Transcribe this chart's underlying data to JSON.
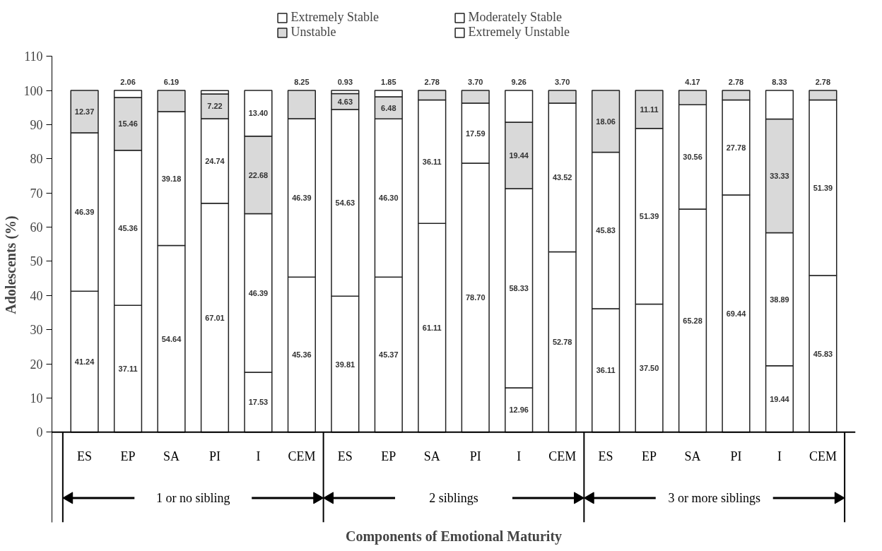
{
  "chart_data": {
    "type": "bar",
    "stacked": true,
    "xlabel": "Components of Emotional Maturity",
    "ylabel": "Adolescents (%)",
    "categories": [
      "ES",
      "EP",
      "SA",
      "PI",
      "I",
      "CEM",
      "ES",
      "EP",
      "SA",
      "PI",
      "I",
      "CEM",
      "ES",
      "EP",
      "SA",
      "PI",
      "I",
      "CEM"
    ],
    "series": [
      {
        "name": "Extremely Stable",
        "color": "#ffffff",
        "values": [
          41.24,
          37.11,
          54.64,
          67.01,
          17.53,
          45.36,
          39.81,
          45.37,
          61.11,
          78.7,
          12.96,
          52.78,
          36.11,
          37.5,
          65.28,
          69.44,
          19.44,
          45.83
        ],
        "value_labels": [
          "41.24",
          "37.11",
          "54.64",
          "67.01",
          "17.53",
          "45.36",
          "39.81",
          "45.37",
          "61.11",
          "78.70",
          "12.96",
          "52.78",
          "36.11",
          "37.50",
          "65.28",
          "69.44",
          "19.44",
          "45.83"
        ]
      },
      {
        "name": "Moderately Stable",
        "color": "#ffffff",
        "values": [
          46.39,
          45.36,
          39.18,
          24.74,
          46.39,
          46.39,
          54.63,
          46.3,
          36.11,
          17.59,
          58.33,
          43.52,
          45.83,
          51.39,
          30.56,
          27.78,
          38.89,
          51.39
        ],
        "value_labels": [
          "46.39",
          "45.36",
          "39.18",
          "24.74",
          "46.39",
          "46.39",
          "54.63",
          "46.30",
          "36.11",
          "17.59",
          "58.33",
          "43.52",
          "45.83",
          "51.39",
          "30.56",
          "27.78",
          "38.89",
          "51.39"
        ]
      },
      {
        "name": "Unstable",
        "color": "#d9d9d9",
        "values": [
          12.37,
          15.46,
          6.19,
          7.22,
          22.68,
          8.25,
          4.63,
          6.48,
          2.78,
          3.7,
          19.44,
          3.7,
          18.06,
          11.11,
          4.17,
          2.78,
          33.33,
          2.78
        ],
        "value_labels": [
          "12.37",
          "15.46",
          "6.19",
          "7.22",
          "22.68",
          "8.25",
          "4.63",
          "6.48",
          "2.78",
          "3.70",
          "19.44",
          "3.70",
          "18.06",
          "11.11",
          "4.17",
          "2.78",
          "33.33",
          "2.78"
        ]
      },
      {
        "name": "Extremely Unstable",
        "color": "#ffffff",
        "values": [
          null,
          2.06,
          null,
          1.0,
          13.4,
          null,
          0.93,
          1.85,
          null,
          null,
          9.26,
          null,
          null,
          null,
          null,
          null,
          8.33,
          null
        ],
        "value_labels": [
          null,
          "2.06",
          null,
          null,
          "13.40",
          null,
          "0.93",
          "1.85",
          null,
          null,
          "9.26",
          null,
          null,
          null,
          null,
          null,
          "8.33",
          null
        ]
      }
    ],
    "ylim": [
      0,
      110
    ],
    "yticks": [
      0,
      10,
      20,
      30,
      40,
      50,
      60,
      70,
      80,
      90,
      100,
      110
    ],
    "grid": false,
    "legend": "top",
    "annotations": [
      "1 or no sibling",
      "2 siblings",
      "3 or more siblings"
    ]
  }
}
